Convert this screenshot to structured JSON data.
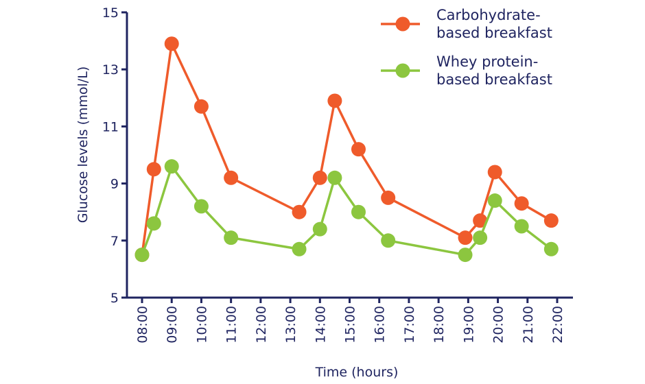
{
  "chart_data": {
    "type": "line",
    "xlabel": "Time (hours)",
    "ylabel": "Glucose levels (mmol/L)",
    "xlim": [
      8,
      22
    ],
    "ylim": [
      5,
      15
    ],
    "x_ticks": [
      "08:00",
      "09:00",
      "10:00",
      "11:00",
      "12:00",
      "13:00",
      "14:00",
      "15:00",
      "16:00",
      "17:00",
      "18:00",
      "19:00",
      "20:00",
      "21:00",
      "22:00"
    ],
    "y_ticks": [
      5,
      7,
      9,
      11,
      13,
      15
    ],
    "grid": false,
    "legend_position": "top-right",
    "series": [
      {
        "name": "Carbohydrate-based breakfast",
        "legend_lines": [
          "Carbohydrate-",
          "based breakfast"
        ],
        "color": "#ef5b2b",
        "points": [
          {
            "x": 8.0,
            "y": 6.5
          },
          {
            "x": 8.4,
            "y": 9.5
          },
          {
            "x": 9.0,
            "y": 13.9
          },
          {
            "x": 10.0,
            "y": 11.7
          },
          {
            "x": 11.0,
            "y": 9.2
          },
          {
            "x": 13.3,
            "y": 8.0
          },
          {
            "x": 14.0,
            "y": 9.2
          },
          {
            "x": 14.5,
            "y": 11.9
          },
          {
            "x": 15.3,
            "y": 10.2
          },
          {
            "x": 16.3,
            "y": 8.5
          },
          {
            "x": 18.9,
            "y": 7.1
          },
          {
            "x": 19.4,
            "y": 7.7
          },
          {
            "x": 19.9,
            "y": 9.4
          },
          {
            "x": 20.8,
            "y": 8.3
          },
          {
            "x": 21.8,
            "y": 7.7
          }
        ]
      },
      {
        "name": "Whey protein-based breakfast",
        "legend_lines": [
          "Whey protein-",
          "based breakfast"
        ],
        "color": "#8cc63f",
        "points": [
          {
            "x": 8.0,
            "y": 6.5
          },
          {
            "x": 8.4,
            "y": 7.6
          },
          {
            "x": 9.0,
            "y": 9.6
          },
          {
            "x": 10.0,
            "y": 8.2
          },
          {
            "x": 11.0,
            "y": 7.1
          },
          {
            "x": 13.3,
            "y": 6.7
          },
          {
            "x": 14.0,
            "y": 7.4
          },
          {
            "x": 14.5,
            "y": 9.2
          },
          {
            "x": 15.3,
            "y": 8.0
          },
          {
            "x": 16.3,
            "y": 7.0
          },
          {
            "x": 18.9,
            "y": 6.5
          },
          {
            "x": 19.4,
            "y": 7.1
          },
          {
            "x": 19.9,
            "y": 8.4
          },
          {
            "x": 20.8,
            "y": 7.5
          },
          {
            "x": 21.8,
            "y": 6.7
          }
        ]
      }
    ]
  }
}
